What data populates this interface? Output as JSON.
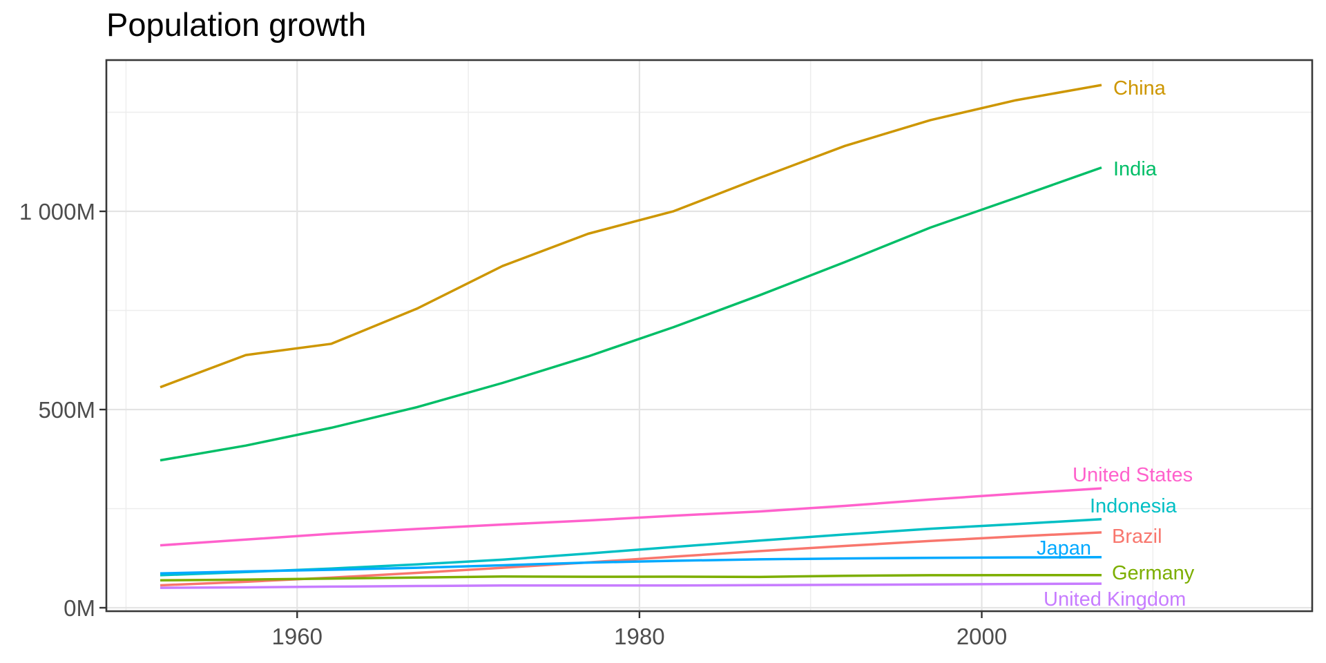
{
  "chart_data": {
    "type": "line",
    "title": "Population growth",
    "xlabel": "",
    "ylabel": "",
    "unit": "millions of people",
    "x": [
      1952,
      1957,
      1962,
      1967,
      1972,
      1977,
      1982,
      1987,
      1992,
      1997,
      2002,
      2007
    ],
    "x_ticks": {
      "major": [
        1960,
        1980,
        2000
      ],
      "minor": [
        1950,
        1970,
        1990,
        2010
      ]
    },
    "x_tick_labels": [
      "1960",
      "1980",
      "2000"
    ],
    "y_ticks": {
      "major": [
        {
          "value": 0,
          "label": "0M"
        },
        {
          "value": 500,
          "label": "500M"
        },
        {
          "value": 1000,
          "label": "1 000M"
        }
      ],
      "minor": [
        250,
        750,
        1250
      ]
    },
    "xlim": [
      1949,
      2013
    ],
    "ylim": [
      -13,
      1382
    ],
    "grid": true,
    "legend_position": "direct-labels-right",
    "series": [
      {
        "name": "Brazil",
        "color": "#F8766D",
        "values": [
          56.6,
          65.55,
          76.04,
          88.05,
          100.84,
          114.31,
          128.96,
          142.94,
          155.98,
          168.55,
          179.91,
          190.01
        ]
      },
      {
        "name": "China",
        "color": "#CD9600",
        "values": [
          556.26,
          637.41,
          665.77,
          754.55,
          862.03,
          943.46,
          1000.28,
          1084.04,
          1164.97,
          1230.07,
          1280.4,
          1318.68
        ]
      },
      {
        "name": "Germany",
        "color": "#7CAE00",
        "values": [
          69.15,
          71.02,
          73.74,
          76.37,
          78.72,
          78.16,
          78.34,
          77.72,
          80.6,
          82.01,
          82.35,
          82.4
        ]
      },
      {
        "name": "India",
        "color": "#00BE67",
        "values": [
          372.0,
          409.0,
          454.0,
          506.0,
          567.0,
          634.0,
          708.0,
          788.0,
          872.0,
          959.0,
          1034.19,
          1110.4
        ]
      },
      {
        "name": "Indonesia",
        "color": "#00BFC4",
        "values": [
          82.05,
          90.12,
          99.03,
          109.34,
          121.28,
          136.73,
          153.34,
          169.28,
          184.82,
          199.28,
          211.06,
          223.55
        ]
      },
      {
        "name": "Japan",
        "color": "#00A9FF",
        "values": [
          86.5,
          91.56,
          95.83,
          100.83,
          107.19,
          113.87,
          118.45,
          122.09,
          124.33,
          125.96,
          127.06,
          127.47
        ]
      },
      {
        "name": "United Kingdom",
        "color": "#C77CFF",
        "values": [
          50.43,
          51.43,
          53.29,
          54.96,
          56.08,
          56.18,
          56.34,
          56.98,
          57.87,
          58.81,
          59.91,
          60.78
        ]
      },
      {
        "name": "United States",
        "color": "#FF61CC",
        "values": [
          157.55,
          171.98,
          186.54,
          198.71,
          209.9,
          220.24,
          232.19,
          242.8,
          256.89,
          272.91,
          287.68,
          301.14
        ]
      }
    ],
    "colors": {
      "axis_text": "#4D4D4D",
      "tick_mark": "#333333",
      "panel_border": "#383838",
      "grid_major": "#E4E4E4",
      "grid_minor": "#EDEDED",
      "panel_background": "#FFFFFF",
      "title_text": "#000000"
    }
  }
}
